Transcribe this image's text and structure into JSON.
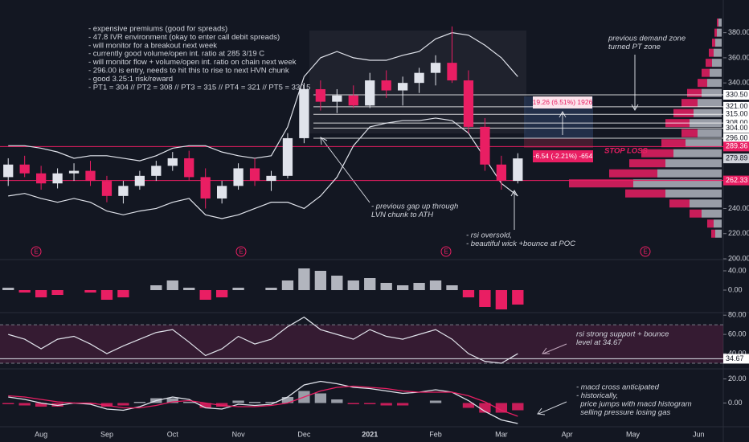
{
  "chart_data": [
    {
      "type": "candlestick",
      "categories": [
        null,
        null,
        "Aug",
        null,
        null,
        null,
        "Sep",
        null,
        null,
        null,
        "Oct",
        null,
        null,
        null,
        "Nov",
        null,
        null,
        null,
        "Dec",
        null,
        null,
        null,
        "2021",
        null,
        null,
        null,
        "Feb",
        null,
        null,
        null,
        "Mar",
        null,
        null,
        null,
        "Apr",
        null,
        null,
        null,
        "May",
        null,
        null,
        null,
        "Jun",
        null
      ],
      "open": [
        265,
        275,
        268,
        260,
        268,
        270,
        262,
        250,
        258,
        266,
        274,
        280,
        265,
        248,
        258,
        272,
        262,
        266,
        296,
        335,
        325,
        330,
        322,
        342,
        334,
        340,
        348,
        356,
        342,
        305,
        275,
        262,
        null,
        null,
        null,
        null,
        null,
        null,
        null,
        null,
        null,
        null,
        null,
        null
      ],
      "high": [
        280,
        282,
        274,
        272,
        276,
        278,
        266,
        262,
        270,
        278,
        285,
        286,
        272,
        262,
        276,
        280,
        270,
        300,
        340,
        342,
        335,
        338,
        348,
        350,
        345,
        352,
        362,
        385,
        350,
        312,
        282,
        284,
        null,
        null,
        null,
        null,
        null,
        null,
        null,
        null,
        null,
        null,
        null,
        null
      ],
      "low": [
        258,
        265,
        255,
        256,
        262,
        258,
        245,
        244,
        255,
        262,
        270,
        262,
        240,
        244,
        255,
        258,
        254,
        264,
        292,
        318,
        316,
        320,
        320,
        328,
        322,
        332,
        338,
        340,
        300,
        270,
        255,
        260,
        null,
        null,
        null,
        null,
        null,
        null,
        null,
        null,
        null,
        null,
        null,
        null
      ],
      "close": [
        275,
        268,
        260,
        268,
        270,
        262,
        250,
        258,
        266,
        274,
        280,
        265,
        248,
        258,
        272,
        262,
        266,
        296,
        335,
        325,
        330,
        322,
        342,
        334,
        340,
        348,
        356,
        342,
        305,
        275,
        262,
        279.89,
        null,
        null,
        null,
        null,
        null,
        null,
        null,
        null,
        null,
        null,
        null,
        null
      ],
      "up_color": "#e0e3eb",
      "down_color": "#e91e63",
      "bands": {
        "color": "#e0e3eb",
        "upper": [
          290,
          290,
          288,
          285,
          280,
          282,
          282,
          280,
          278,
          282,
          288,
          290,
          290,
          285,
          282,
          280,
          282,
          305,
          345,
          360,
          365,
          360,
          358,
          358,
          362,
          365,
          375,
          380,
          378,
          370,
          360,
          345,
          null,
          null,
          null,
          null,
          null,
          null,
          null,
          null,
          null,
          null,
          null,
          null
        ],
        "lower": [
          250,
          252,
          248,
          245,
          248,
          245,
          238,
          235,
          238,
          240,
          245,
          248,
          235,
          232,
          235,
          240,
          245,
          245,
          240,
          250,
          265,
          290,
          305,
          308,
          310,
          310,
          312,
          310,
          300,
          280,
          260,
          250,
          null,
          null,
          null,
          null,
          null,
          null,
          null,
          null,
          null,
          null,
          null,
          null
        ]
      },
      "ylim": [
        200,
        406
      ],
      "yticks": [
        {
          "value": 200,
          "label": "200.00"
        },
        {
          "value": 220,
          "label": "220.00"
        },
        {
          "value": 240,
          "label": "240.00"
        },
        {
          "value": 340,
          "label": "340.00"
        },
        {
          "value": 360,
          "label": "360.00"
        },
        {
          "value": 380,
          "label": "380.00"
        }
      ],
      "levels": [
        {
          "value": 330.5,
          "label": "330.50",
          "color": "#ffffff"
        },
        {
          "value": 321,
          "label": "321.00",
          "color": "#ffffff"
        },
        {
          "value": 315,
          "label": "315.00",
          "color": "#ffffff"
        },
        {
          "value": 308,
          "label": "308.00",
          "color": "#ffffff"
        },
        {
          "value": 304,
          "label": "304.00",
          "color": "#ffffff"
        },
        {
          "value": 296,
          "label": "296.00",
          "color": "#ffffff"
        },
        {
          "value": 289.36,
          "color": "#e91e63"
        },
        {
          "value": 279.89,
          "color": "#d1d4dc"
        },
        {
          "value": 262.33,
          "color": "#e91e63"
        }
      ],
      "volume_profile": {
        "up_color": "#b2b5be",
        "down_color": "#e91e63",
        "prices": [
          220,
          228,
          236,
          244,
          252,
          260,
          268,
          276,
          284,
          292,
          300,
          308,
          316,
          324,
          332,
          340,
          348,
          356,
          364,
          372,
          380,
          388
        ],
        "up": [
          8,
          10,
          25,
          40,
          70,
          110,
          80,
          70,
          60,
          45,
          30,
          40,
          35,
          30,
          25,
          18,
          15,
          12,
          10,
          8,
          6,
          4
        ],
        "down": [
          5,
          8,
          15,
          25,
          50,
          80,
          60,
          45,
          40,
          30,
          20,
          30,
          25,
          20,
          18,
          12,
          10,
          8,
          6,
          4,
          3,
          2
        ]
      },
      "notes": [
        "- expensive premiums (good for spreads)",
        "- 47.8 IVR environment (okay to enter call debit spreads)",
        "- will monitor for a breakout next week",
        "- currently good volume/open int. ratio at 285 3/19 C",
        "- will monitor flow + volume/open int. ratio on chain next week",
        "- 296.00 is entry, needs to hit this to rise to next HVN chunk",
        "- good 3.25:1 risk/reward",
        "- PT1 = 304 // PT2 = 308 // PT3 = 315 // PT4 = 321 // PT5 = 330.5"
      ],
      "annotations": [
        {
          "lines": [
            "previous demand zone",
            "turned PT zone"
          ],
          "color": "#d1d4dc"
        },
        {
          "lines": [
            "STOP LOSS"
          ],
          "color": "#e91e63"
        },
        {
          "lines": [
            "- previous gap up through",
            "LVN chunk to ATH"
          ],
          "color": "#d1d4dc"
        },
        {
          "lines": [
            "- rsi oversold,",
            "- beautiful wick +bounce at POC"
          ],
          "color": "#d1d4dc"
        }
      ],
      "measures": [
        "19.26 (6.51%) 1926",
        "-6.54 (-2.21%) -654"
      ],
      "earnings": [
        "E",
        "E",
        "E",
        "E"
      ]
    },
    {
      "type": "bar",
      "values": [
        5,
        -5,
        -15,
        -10,
        0,
        -5,
        -20,
        -15,
        0,
        10,
        20,
        5,
        -20,
        -15,
        5,
        0,
        5,
        20,
        45,
        40,
        30,
        20,
        25,
        15,
        10,
        15,
        20,
        10,
        -15,
        -35,
        -40,
        -30
      ],
      "pos_color": "#b2b5be",
      "neg_color": "#e91e63",
      "ylim": [
        -45,
        60
      ],
      "yticks": [
        {
          "value": 0,
          "label": "0.00"
        },
        {
          "value": 40,
          "label": "40.00"
        }
      ]
    },
    {
      "type": "line",
      "values": [
        60,
        55,
        45,
        55,
        58,
        50,
        40,
        48,
        55,
        62,
        65,
        52,
        38,
        45,
        58,
        50,
        55,
        68,
        78,
        65,
        60,
        55,
        65,
        58,
        55,
        60,
        65,
        55,
        40,
        32,
        30,
        40
      ],
      "color": "#e0e3eb",
      "ylim": [
        25,
        81
      ],
      "yticks": [
        {
          "value": 40,
          "label": "40.00"
        },
        {
          "value": 60,
          "label": "60.00"
        },
        {
          "value": 80,
          "label": "80.00"
        }
      ],
      "band": [
        30,
        70
      ],
      "level": 34.67,
      "annotations": [
        {
          "lines": [
            "rsi strong support + bounce",
            "level at 34.67"
          ],
          "color": "#d1d4dc"
        }
      ]
    },
    {
      "type": "macd",
      "series": [
        {
          "name": "MACD",
          "color": "#e0e3eb",
          "values": [
            5,
            3,
            0,
            -2,
            0,
            -1,
            -5,
            -6,
            -3,
            2,
            5,
            3,
            -4,
            -5,
            -1,
            -2,
            -1,
            5,
            15,
            18,
            16,
            13,
            12,
            10,
            8,
            9,
            11,
            9,
            2,
            -7,
            -14,
            -17
          ]
        },
        {
          "name": "Signal",
          "color": "#e91e63",
          "values": [
            6,
            5,
            3,
            1,
            0,
            0,
            -2,
            -4,
            -4,
            -2,
            1,
            2,
            0,
            -2,
            -3,
            -3,
            -2,
            0,
            5,
            10,
            13,
            14,
            13,
            12,
            10,
            9,
            9,
            9,
            6,
            1,
            -6,
            -11
          ]
        }
      ],
      "histogram": [
        -1,
        -2,
        -3,
        -3,
        0,
        -1,
        -3,
        -2,
        1,
        4,
        4,
        1,
        -4,
        -3,
        2,
        1,
        1,
        5,
        10,
        8,
        3,
        -1,
        -1,
        -2,
        -2,
        0,
        2,
        0,
        -4,
        -8,
        -8,
        -6
      ],
      "pos_color": "#b2b5be",
      "neg_color": "#e91e63",
      "ylim": [
        -19,
        27
      ],
      "yticks": [
        {
          "value": 0,
          "label": "0.00"
        },
        {
          "value": 20,
          "label": "20.00"
        }
      ],
      "annotations": [
        {
          "lines": [
            "- macd cross anticipated",
            "- historically,",
            "  price jumps with macd histogram",
            "  selling pressure losing gas"
          ],
          "color": "#d1d4dc"
        }
      ]
    }
  ]
}
